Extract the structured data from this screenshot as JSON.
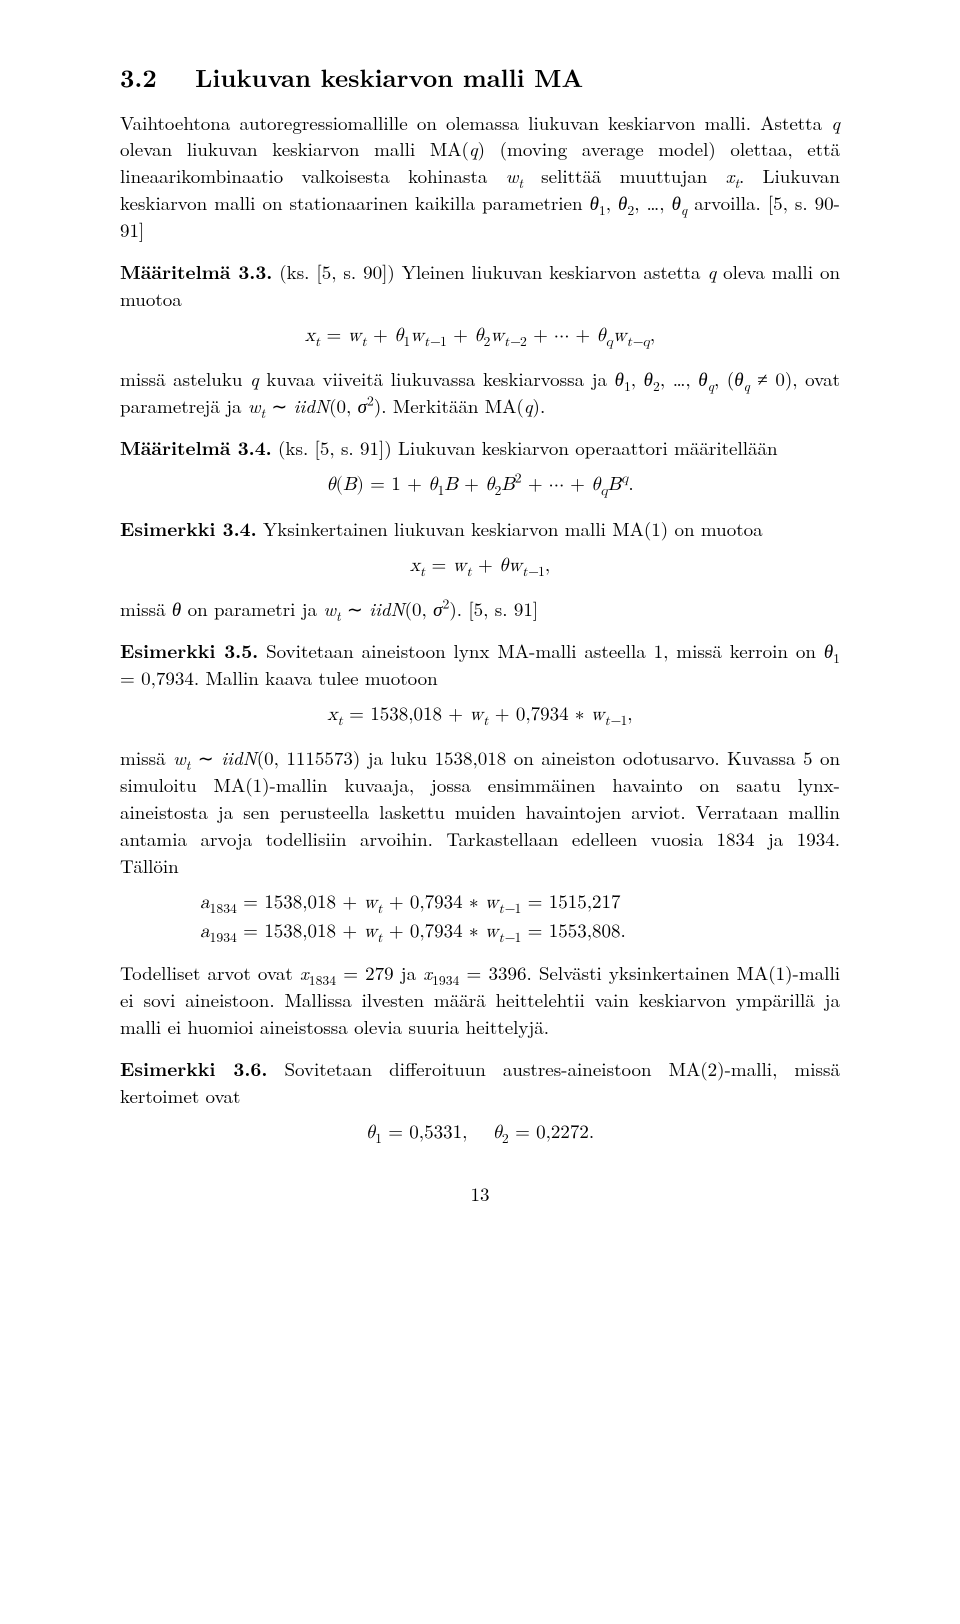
{
  "section": {
    "number": "3.2",
    "title": "Liukuvan keskiarvon malli MA"
  },
  "para1": "Vaihtoehtona autoregressiomallille on olemassa liukuvan keskiarvon malli. Astetta q olevan liukuvan keskiarvon malli MA(q) (moving average model) olettaa, että lineaarikombinaatio valkoisesta kohinasta wₜ selittää muuttujan xₜ. Liukuvan keskiarvon malli on stationaarinen kaikilla parametrien θ₁, θ₂, …, θ_q arvoilla. [5, s. 90-91]",
  "def33": {
    "label": "Määritelmä 3.3.",
    "text": "(ks. [5, s. 90]) Yleinen liukuvan keskiarvon astetta q oleva malli on muotoa"
  },
  "eq1": "xₜ = wₜ + θ₁wₜ₋₁ + θ₂wₜ₋₂ + ⋯ + θ_q wₜ₋q,",
  "para2": "missä asteluku q kuvaa viiveitä liukuvassa keskiarvossa ja θ₁, θ₂, …, θ_q, (θ_q ≠ 0), ovat parametrejä ja wₜ ∼ iidN(0, σ²). Merkitään MA(q).",
  "def34": {
    "label": "Määritelmä 3.4.",
    "text": "(ks. [5, s. 91]) Liukuvan keskiarvon operaattori määritellään"
  },
  "eq2": "θ(B) = 1 + θ₁B + θ₂B² + ⋯ + θ_qBᑫ.",
  "ex34": {
    "label": "Esimerkki 3.4.",
    "text": "Yksinkertainen liukuvan keskiarvon malli MA(1) on muotoa"
  },
  "eq3": "xₜ = wₜ + θwₜ₋₁,",
  "para3": "missä θ on parametri ja wₜ ∼ iidN(0, σ²). [5, s. 91]",
  "ex35": {
    "label": "Esimerkki 3.5.",
    "text": "Sovitetaan aineistoon lynx MA-malli asteella 1, missä kerroin on θ₁ = 0,7934. Mallin kaava tulee muotoon"
  },
  "eq4": "xₜ = 1538,018 + wₜ + 0,7934 ∗ wₜ₋₁,",
  "para4": "missä wₜ ∼ iidN(0, 1115573) ja luku 1538,018 on aineiston odotusarvo. Kuvassa 5 on simuloitu MA(1)-mallin kuvaaja, jossa ensimmäinen havainto on saatu lynx-aineistosta ja sen perusteella laskettu muiden havaintojen arviot. Verrataan mallin antamia arvoja todellisiin arvoihin. Tarkastellaan edelleen vuosia 1834 ja 1934. Tällöin",
  "eq5a": "a₁₈₃₄ = 1538,018 + wₜ + 0,7934 ∗ wₜ₋₁ = 1515,217",
  "eq5b": "a₁₉₃₄ = 1538,018 + wₜ + 0,7934 ∗ wₜ₋₁ = 1553,808.",
  "para5": "Todelliset arvot ovat x₁₈₃₄ = 279 ja x₁₉₃₄ = 3396. Selvästi yksinkertainen MA(1)-malli ei sovi aineistoon. Mallissa ilvesten määrä heittelehtii vain keskiarvon ympärillä ja malli ei huomioi aineistossa olevia suuria heittelyjä.",
  "ex36": {
    "label": "Esimerkki 3.6.",
    "text": "Sovitetaan differoituun austres-aineistoon MA(2)-malli, missä kertoimet ovat"
  },
  "eq6": "θ₁ = 0,5331,    θ₂ = 0,2272.",
  "pagenum": "13"
}
